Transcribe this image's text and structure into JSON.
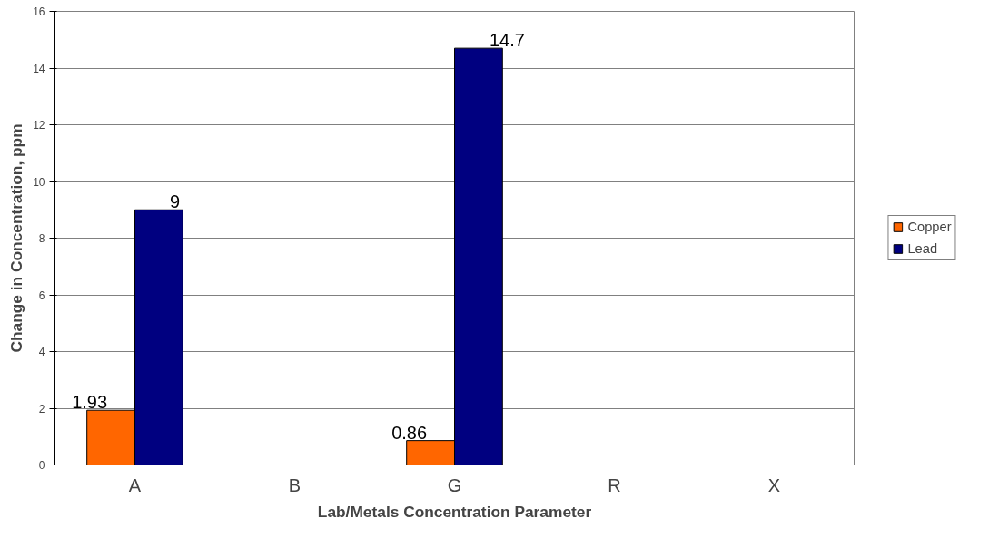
{
  "chart_data": {
    "type": "bar",
    "xlabel": "Lab/Metals Concentration Parameter",
    "ylabel": "Change in Concentration, ppm",
    "categories": [
      "A",
      "B",
      "G",
      "R",
      "X"
    ],
    "series": [
      {
        "name": "Copper",
        "color": "#ff6600",
        "values": [
          1.93,
          null,
          0.86,
          null,
          null
        ],
        "value_labels": [
          "1.93",
          null,
          "0.86",
          null,
          null
        ]
      },
      {
        "name": "Lead",
        "color": "#000080",
        "values": [
          9,
          null,
          14.7,
          null,
          null
        ],
        "value_labels": [
          "9",
          null,
          "14.7",
          null,
          null
        ]
      }
    ],
    "ylim": [
      0,
      16
    ],
    "yticks": [
      0,
      2,
      4,
      6,
      8,
      10,
      12,
      14,
      16
    ],
    "grid": "y",
    "legend": "right"
  }
}
